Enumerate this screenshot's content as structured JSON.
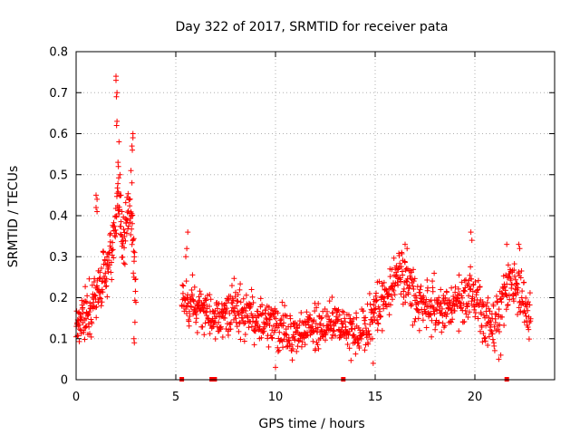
{
  "chart_data": {
    "type": "scatter",
    "title": "Day 322 of 2017, SRMTID for receiver pata",
    "xlabel": "GPS time / hours",
    "ylabel": "SRMTID / TECUs",
    "xlim": [
      0,
      24
    ],
    "ylim": [
      0,
      0.8
    ],
    "grid": true,
    "marker": "+",
    "color": "#ff0000",
    "x_ticks": [
      0,
      5,
      10,
      15,
      20
    ],
    "x_tick_labels": [
      "0",
      "5",
      "10",
      "15",
      "20"
    ],
    "y_ticks": [
      0,
      0.1,
      0.2,
      0.3,
      0.4,
      0.5,
      0.6,
      0.7,
      0.8
    ],
    "y_tick_labels": [
      "0",
      "0.1",
      "0.2",
      "0.3",
      "0.4",
      "0.5",
      "0.6",
      "0.7",
      "0.8"
    ],
    "series": [
      {
        "name": "SRMTID",
        "segments": [
          {
            "start": 0.0,
            "end": 3.0,
            "mean": [
              [
                0.0,
                0.13
              ],
              [
                0.5,
                0.16
              ],
              [
                1.0,
                0.2
              ],
              [
                1.5,
                0.27
              ],
              [
                1.9,
                0.34
              ],
              [
                2.1,
                0.48
              ],
              [
                2.3,
                0.33
              ],
              [
                2.6,
                0.4
              ],
              [
                2.85,
                0.38
              ],
              [
                3.0,
                0.2
              ]
            ],
            "spread": 0.06,
            "samples": 230
          },
          {
            "start": 5.3,
            "end": 14.8,
            "mean": [
              [
                5.3,
                0.19
              ],
              [
                6.0,
                0.18
              ],
              [
                7.0,
                0.15
              ],
              [
                8.0,
                0.17
              ],
              [
                9.0,
                0.15
              ],
              [
                10.0,
                0.13
              ],
              [
                11.0,
                0.11
              ],
              [
                12.0,
                0.13
              ],
              [
                13.0,
                0.14
              ],
              [
                14.0,
                0.12
              ],
              [
                14.8,
                0.14
              ]
            ],
            "spread": 0.05,
            "samples": 620
          },
          {
            "start": 14.8,
            "end": 22.8,
            "mean": [
              [
                14.8,
                0.15
              ],
              [
                15.5,
                0.2
              ],
              [
                16.0,
                0.26
              ],
              [
                16.5,
                0.25
              ],
              [
                17.0,
                0.2
              ],
              [
                18.0,
                0.17
              ],
              [
                19.0,
                0.18
              ],
              [
                19.8,
                0.22
              ],
              [
                20.5,
                0.15
              ],
              [
                21.0,
                0.13
              ],
              [
                21.5,
                0.2
              ],
              [
                22.0,
                0.24
              ],
              [
                22.8,
                0.15
              ]
            ],
            "spread": 0.055,
            "samples": 520
          }
        ],
        "highlights": [
          [
            2.0,
            0.74
          ],
          [
            2.0,
            0.73
          ],
          [
            2.05,
            0.7
          ],
          [
            2.02,
            0.69
          ],
          [
            2.05,
            0.63
          ],
          [
            2.03,
            0.62
          ],
          [
            2.1,
            0.53
          ],
          [
            2.12,
            0.52
          ],
          [
            2.15,
            0.58
          ],
          [
            2.2,
            0.5
          ],
          [
            2.25,
            0.45
          ],
          [
            2.3,
            0.41
          ],
          [
            1.0,
            0.45
          ],
          [
            1.05,
            0.44
          ],
          [
            1.0,
            0.42
          ],
          [
            1.05,
            0.41
          ],
          [
            2.85,
            0.6
          ],
          [
            2.85,
            0.59
          ],
          [
            2.8,
            0.57
          ],
          [
            2.82,
            0.56
          ],
          [
            2.75,
            0.51
          ],
          [
            2.8,
            0.48
          ],
          [
            2.9,
            0.25
          ],
          [
            2.95,
            0.14
          ],
          [
            2.9,
            0.1
          ],
          [
            2.92,
            0.09
          ],
          [
            5.6,
            0.36
          ],
          [
            5.55,
            0.32
          ],
          [
            5.5,
            0.3
          ],
          [
            19.8,
            0.36
          ],
          [
            19.85,
            0.34
          ],
          [
            16.5,
            0.33
          ],
          [
            16.6,
            0.32
          ],
          [
            21.6,
            0.33
          ],
          [
            22.2,
            0.33
          ],
          [
            22.25,
            0.32
          ],
          [
            10.0,
            0.03
          ],
          [
            14.9,
            0.04
          ],
          [
            21.2,
            0.05
          ],
          [
            21.3,
            0.06
          ]
        ]
      }
    ],
    "zero_markers": [
      5.3,
      6.8,
      6.95,
      13.4,
      21.6
    ]
  }
}
